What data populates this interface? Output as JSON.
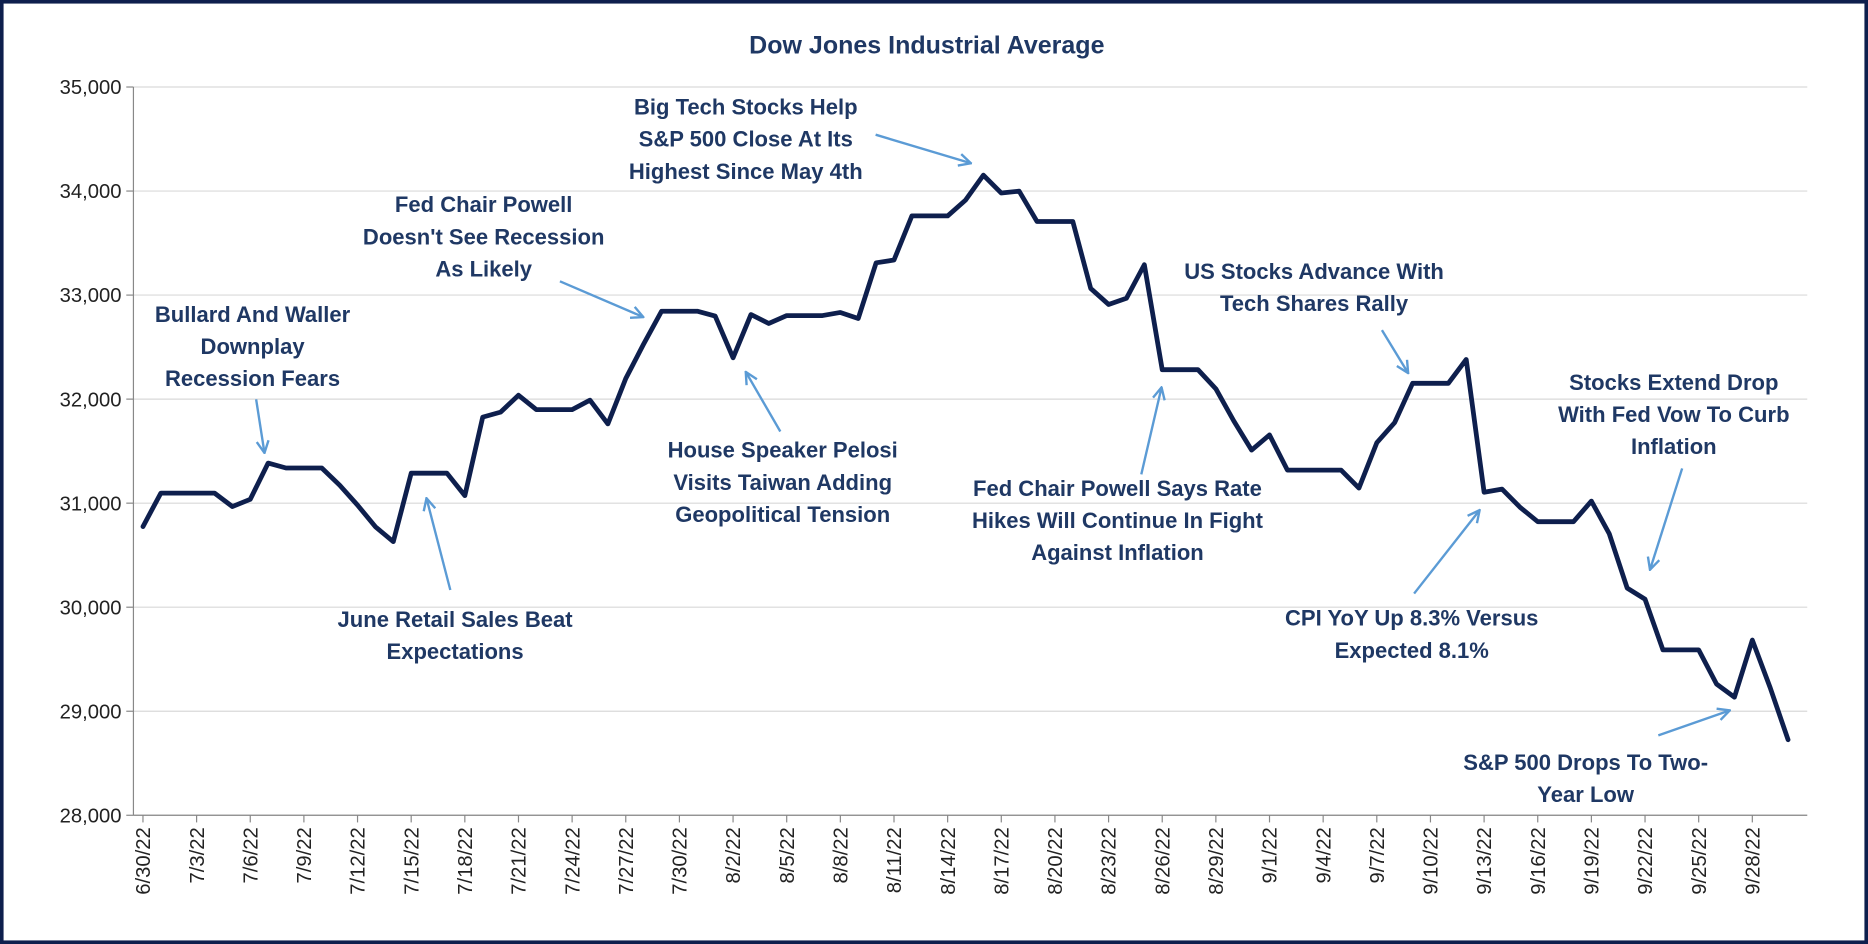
{
  "chart_data": {
    "type": "line",
    "title": "Dow Jones Industrial Average",
    "color": "#0e1f4d",
    "grid": true,
    "ylim": [
      28000,
      35000
    ],
    "yticks": [
      {
        "value": 28000,
        "label": "28,000"
      },
      {
        "value": 29000,
        "label": "29,000"
      },
      {
        "value": 30000,
        "label": "30,000"
      },
      {
        "value": 31000,
        "label": "31,000"
      },
      {
        "value": 32000,
        "label": "32,000"
      },
      {
        "value": 33000,
        "label": "33,000"
      },
      {
        "value": 34000,
        "label": "34,000"
      },
      {
        "value": 35000,
        "label": "35,000"
      }
    ],
    "categories": [
      "6/30/22",
      null,
      null,
      "7/3/22",
      null,
      null,
      "7/6/22",
      null,
      null,
      "7/9/22",
      null,
      null,
      "7/12/22",
      null,
      null,
      "7/15/22",
      null,
      null,
      "7/18/22",
      null,
      null,
      "7/21/22",
      null,
      null,
      "7/24/22",
      null,
      null,
      "7/27/22",
      null,
      null,
      "7/30/22",
      null,
      null,
      "8/2/22",
      null,
      null,
      "8/5/22",
      null,
      null,
      "8/8/22",
      null,
      null,
      "8/11/22",
      null,
      null,
      "8/14/22",
      null,
      null,
      "8/17/22",
      null,
      null,
      "8/20/22",
      null,
      null,
      "8/23/22",
      null,
      null,
      "8/26/22",
      null,
      null,
      "8/29/22",
      null,
      null,
      "9/1/22",
      null,
      null,
      "9/4/22",
      null,
      null,
      "9/7/22",
      null,
      null,
      "9/10/22",
      null,
      null,
      "9/13/22",
      null,
      null,
      "9/16/22",
      null,
      null,
      "9/19/22",
      null,
      null,
      "9/22/22",
      null,
      null,
      "9/25/22",
      null,
      null,
      "9/28/22",
      null,
      null
    ],
    "values": [
      30775,
      31097,
      31097,
      31097,
      31097,
      30967,
      31037,
      31385,
      31338,
      31338,
      31338,
      31173,
      30981,
      30773,
      30630,
      31288,
      31288,
      31288,
      31072,
      31827,
      31875,
      32037,
      31899,
      31899,
      31899,
      31990,
      31762,
      32198,
      32530,
      32845,
      32845,
      32845,
      32798,
      32397,
      32813,
      32727,
      32803,
      32803,
      32803,
      32833,
      32775,
      33310,
      33337,
      33761,
      33761,
      33761,
      33913,
      34153,
      33981,
      33999,
      33707,
      33707,
      33707,
      33064,
      32910,
      32970,
      33292,
      32283,
      32283,
      32283,
      32099,
      31791,
      31510,
      31656,
      31318,
      31318,
      31318,
      31318,
      31145,
      31581,
      31775,
      32152,
      32152,
      32152,
      32381,
      31105,
      31135,
      30962,
      30822,
      30822,
      30822,
      31020,
      30706,
      30184,
      30077,
      29590,
      29590,
      29590,
      29261,
      29135,
      29684,
      29226,
      28726
    ],
    "annotations": [
      {
        "lines": [
          "Bullard And Waller",
          "Downplay",
          "Recession Fears"
        ]
      },
      {
        "lines": [
          "June Retail Sales Beat",
          "Expectations"
        ]
      },
      {
        "lines": [
          "Fed Chair Powell",
          "Doesn't See Recession",
          "As Likely"
        ]
      },
      {
        "lines": [
          "House Speaker Pelosi",
          "Visits Taiwan Adding",
          "Geopolitical Tension"
        ]
      },
      {
        "lines": [
          "Big Tech Stocks Help",
          "S&P 500 Close At Its",
          "Highest Since May 4th"
        ]
      },
      {
        "lines": [
          "Fed Chair Powell Says Rate",
          "Hikes Will Continue In Fight",
          "Against Inflation"
        ]
      },
      {
        "lines": [
          "US Stocks Advance With",
          "Tech Shares Rally"
        ]
      },
      {
        "lines": [
          "CPI YoY Up 8.3% Versus",
          "Expected 8.1%"
        ]
      },
      {
        "lines": [
          "Stocks Extend Drop",
          "With Fed Vow To Curb",
          "Inflation"
        ]
      },
      {
        "lines": [
          "S&P 500 Drops To Two-",
          "Year Low"
        ]
      }
    ]
  }
}
